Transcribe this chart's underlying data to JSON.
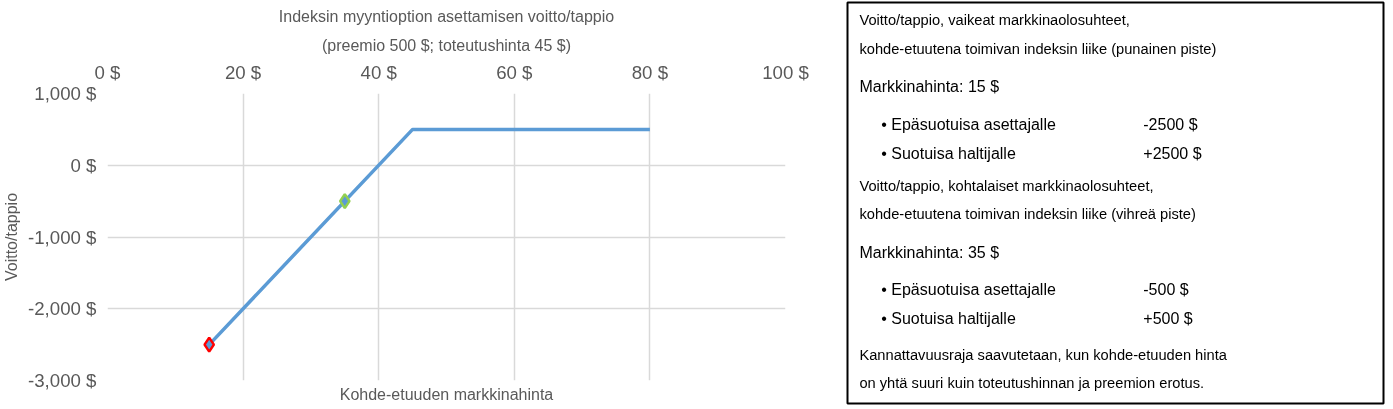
{
  "chart_data": [
    {
      "type": "line",
      "title": "Indeksin myyntioption asettamisen voitto/tappio",
      "subtitle": "(preemio 500 $; toteutushinta 45 $)",
      "xlabel": "Kohde-etuuden markkinahinta",
      "ylabel": "Voitto/tappio",
      "series": [
        {
          "type": "line",
          "color": "#5b9bd5",
          "x": [
            15,
            45,
            80
          ],
          "values": [
            -2500,
            500,
            500
          ],
          "marker": "none"
        },
        {
          "type": "scatter",
          "color": "#ff0000",
          "x": [
            15
          ],
          "values": [
            -2500
          ],
          "marker": "diamond"
        },
        {
          "type": "scatter",
          "color": "#92d050",
          "x": [
            35
          ],
          "values": [
            -500
          ],
          "marker": "diamond"
        }
      ],
      "xlim": [
        0,
        100
      ],
      "xticks": [
        {
          "value": 0,
          "label": "0 $"
        },
        {
          "value": 20,
          "label": "20 $"
        },
        {
          "value": 40,
          "label": "40 $"
        },
        {
          "value": 60,
          "label": "60 $"
        },
        {
          "value": 80,
          "label": "80 $"
        },
        {
          "value": 100,
          "label": "100 $"
        }
      ],
      "ylim": [
        -3000,
        1000
      ],
      "yticks": [
        {
          "value": -3000,
          "label": "-3,000 $"
        },
        {
          "value": -2000,
          "label": "-2,000 $"
        },
        {
          "value": -1000,
          "label": "-1,000 $"
        },
        {
          "value": 0,
          "label": "0 $"
        },
        {
          "value": 1000,
          "label": "1,000 $"
        }
      ],
      "grid": true
    },
    {
      "type": "other",
      "annotations": [
        "Voitto/tappio, vaikeat markkinaolosuhteet,",
        "kohde-etuutena toimivan indeksin liike (punainen piste)",
        "Markkinahinta: 15 $",
        "• Epäsuotuisa asettajalle",
        "-2500 $",
        "• Suotuisa haltijalle",
        "+2500 $",
        "Voitto/tappio, kohtalaiset markkinaolosuhteet,",
        "kohde-etuutena toimivan indeksin liike (vihreä piste)",
        "Markkinahinta: 35 $",
        "• Epäsuotuisa asettajalle",
        "-500 $",
        "• Suotuisa haltijalle",
        "+500 $",
        "Kannattavuusraja saavutetaan, kun kohde-etuuden hinta",
        "on yhtä suuri kuin toteutushinnan ja preemion erotus."
      ]
    }
  ]
}
